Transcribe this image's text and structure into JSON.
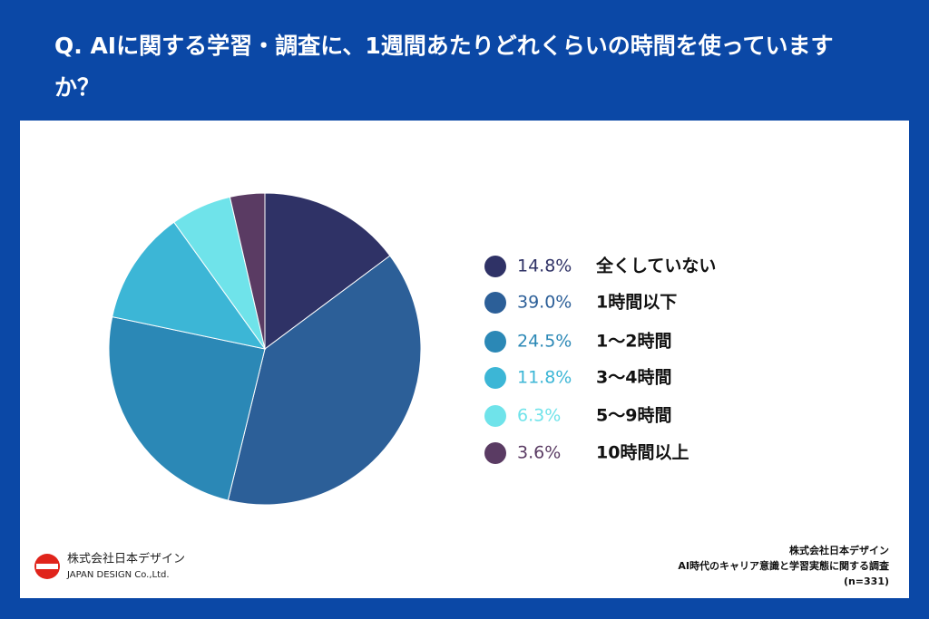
{
  "chart_data": {
    "type": "pie",
    "title": "Q. AIに関する学習・調査に、1週間あたりどれくらいの時間を使っていますか？",
    "categories": [
      "全くしていない",
      "1時間以下",
      "1〜2時間",
      "3〜4時間",
      "5〜9時間",
      "10時間以上"
    ],
    "values": [
      14.8,
      39.0,
      24.5,
      11.8,
      6.3,
      3.6
    ],
    "value_labels": [
      "14.8%",
      "39.0%",
      "24.5%",
      "11.8%",
      "6.3%",
      "3.6%"
    ],
    "colors": [
      "#2f3266",
      "#2c5f98",
      "#2b88b6",
      "#3cb6d6",
      "#6fe3ea",
      "#5a3b63"
    ],
    "source": [
      "株式会社日本デザイン",
      "AI時代のキャリア意識と学習実態に関する調査",
      "(n=331)"
    ]
  },
  "logo": {
    "name": "株式会社日本デザイン",
    "name_en": "JAPAN DESIGN Co.,Ltd."
  }
}
